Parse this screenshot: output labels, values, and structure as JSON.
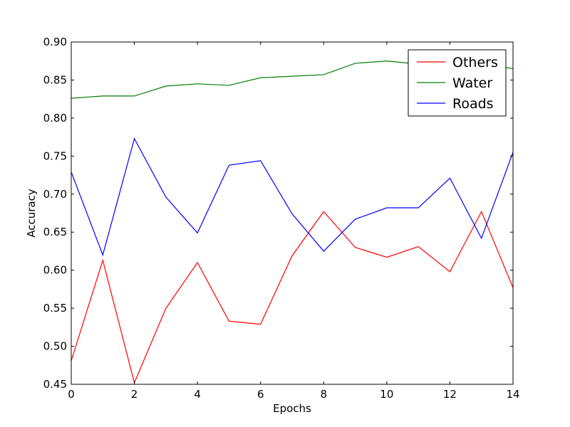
{
  "chart_data": {
    "type": "line",
    "title": "",
    "xlabel": "Epochs",
    "ylabel": "Accuracy",
    "xlim": [
      0,
      14
    ],
    "ylim": [
      0.45,
      0.9
    ],
    "x": [
      0,
      1,
      2,
      3,
      4,
      5,
      6,
      7,
      8,
      9,
      10,
      11,
      12,
      13,
      14
    ],
    "x_ticks": [
      "0",
      "2",
      "4",
      "6",
      "8",
      "10",
      "12",
      "14"
    ],
    "x_tick_values": [
      0,
      2,
      4,
      6,
      8,
      10,
      12,
      14
    ],
    "y_ticks": [
      "0.45",
      "0.50",
      "0.55",
      "0.60",
      "0.65",
      "0.70",
      "0.75",
      "0.80",
      "0.85",
      "0.90"
    ],
    "y_tick_values": [
      0.45,
      0.5,
      0.55,
      0.6,
      0.65,
      0.7,
      0.75,
      0.8,
      0.85,
      0.9
    ],
    "grid": false,
    "legend_position": "top-right",
    "series": [
      {
        "name": "Others",
        "color": "#ff0000",
        "values": [
          0.481,
          0.613,
          0.452,
          0.55,
          0.61,
          0.533,
          0.529,
          0.619,
          0.677,
          0.63,
          0.617,
          0.631,
          0.598,
          0.677,
          0.577
        ]
      },
      {
        "name": "Water",
        "color": "#008000",
        "values": [
          0.826,
          0.829,
          0.829,
          0.842,
          0.845,
          0.843,
          0.853,
          0.855,
          0.857,
          0.872,
          0.875,
          0.871,
          0.869,
          0.871,
          0.865
        ]
      },
      {
        "name": "Roads",
        "color": "#0000ff",
        "values": [
          0.729,
          0.62,
          0.773,
          0.696,
          0.649,
          0.738,
          0.744,
          0.674,
          0.625,
          0.667,
          0.682,
          0.682,
          0.721,
          0.642,
          0.755
        ]
      }
    ]
  }
}
